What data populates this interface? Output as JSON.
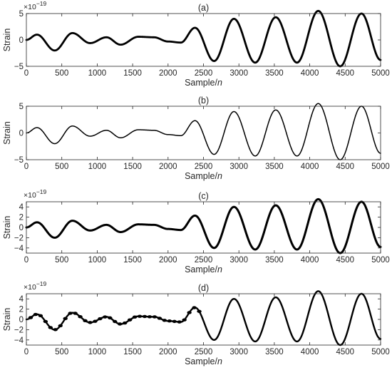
{
  "chart_data": [
    {
      "type": "line",
      "panel": "(a)",
      "title": "(a)",
      "xlabel": "Sample/n",
      "ylabel": "Strain",
      "multiplier": "×10^-19",
      "xlim": [
        0,
        5000
      ],
      "ylim": [
        -5,
        5
      ],
      "xticks": [
        0,
        500,
        1000,
        1500,
        2000,
        2500,
        3000,
        3500,
        4000,
        4500,
        5000
      ],
      "yticks": [
        -5,
        0,
        5
      ],
      "x": [
        0,
        150,
        400,
        650,
        900,
        1130,
        1330,
        1580,
        1800,
        2000,
        2180,
        2380,
        2650,
        2930,
        3230,
        3520,
        3820,
        4120,
        4430,
        4730,
        5000
      ],
      "y": [
        0,
        1.0,
        -2.0,
        1.3,
        -0.6,
        0.5,
        -0.9,
        0.6,
        0.5,
        -0.3,
        -0.5,
        2.3,
        -4.0,
        4.0,
        -4.3,
        4.3,
        -4.3,
        5.5,
        -5.0,
        5.0,
        -3.8
      ],
      "noise": "thick"
    },
    {
      "type": "line",
      "panel": "(b)",
      "title": "(b)",
      "xlabel": "Sample/n",
      "ylabel": "Strain",
      "multiplier": "",
      "xlim": [
        0,
        5000
      ],
      "ylim": [
        -5,
        5
      ],
      "xticks": [
        0,
        500,
        1000,
        1500,
        2000,
        2500,
        3000,
        3500,
        4000,
        4500,
        5000
      ],
      "yticks": [
        -5,
        0,
        5
      ],
      "x": [
        0,
        150,
        400,
        650,
        900,
        1130,
        1330,
        1580,
        1800,
        2000,
        2180,
        2380,
        2650,
        2930,
        3230,
        3520,
        3820,
        4120,
        4430,
        4730,
        5000
      ],
      "y": [
        0,
        1.0,
        -2.0,
        1.3,
        -0.6,
        0.5,
        -0.9,
        0.6,
        0.5,
        -0.3,
        -0.5,
        2.3,
        -4.0,
        4.0,
        -4.3,
        4.3,
        -4.3,
        5.5,
        -5.0,
        5.0,
        -3.8
      ],
      "noise": "none"
    },
    {
      "type": "line",
      "panel": "(c)",
      "title": "(c)",
      "xlabel": "Sample/n",
      "ylabel": "Strain",
      "multiplier": "×10^-19",
      "xlim": [
        0,
        5000
      ],
      "ylim": [
        -5,
        5
      ],
      "xticks": [
        0,
        500,
        1000,
        1500,
        2000,
        2500,
        3000,
        3500,
        4000,
        4500,
        5000
      ],
      "yticks": [
        -4,
        -2,
        0,
        2,
        4
      ],
      "x": [
        0,
        150,
        400,
        650,
        900,
        1130,
        1330,
        1580,
        1800,
        2000,
        2180,
        2380,
        2650,
        2930,
        3230,
        3520,
        3820,
        4120,
        4430,
        4730,
        5000
      ],
      "y": [
        0,
        1.0,
        -2.0,
        1.3,
        -0.6,
        0.5,
        -0.9,
        0.6,
        0.5,
        -0.3,
        -0.5,
        2.3,
        -4.0,
        4.0,
        -4.3,
        4.3,
        -4.3,
        5.5,
        -5.0,
        5.0,
        -3.8
      ],
      "noise": "medium"
    },
    {
      "type": "line",
      "panel": "(d)",
      "title": "(d)",
      "xlabel": "Sample/n",
      "ylabel": "Strain",
      "multiplier": "×10^-19",
      "xlim": [
        0,
        5000
      ],
      "ylim": [
        -5,
        5
      ],
      "xticks": [
        0,
        500,
        1000,
        1500,
        2000,
        2500,
        3000,
        3500,
        4000,
        4500,
        5000
      ],
      "yticks": [
        -4,
        -2,
        0,
        2,
        4
      ],
      "x": [
        0,
        150,
        400,
        650,
        900,
        1130,
        1330,
        1580,
        1800,
        2000,
        2180,
        2380,
        2650,
        2930,
        3230,
        3520,
        3820,
        4120,
        4430,
        4730,
        5000
      ],
      "y": [
        0,
        1.0,
        -2.0,
        1.3,
        -0.6,
        0.5,
        -0.9,
        0.6,
        0.5,
        -0.3,
        -0.5,
        2.3,
        -4.0,
        4.0,
        -4.3,
        4.3,
        -4.3,
        5.5,
        -5.0,
        5.0,
        -3.8
      ],
      "noise": "beaded"
    }
  ]
}
